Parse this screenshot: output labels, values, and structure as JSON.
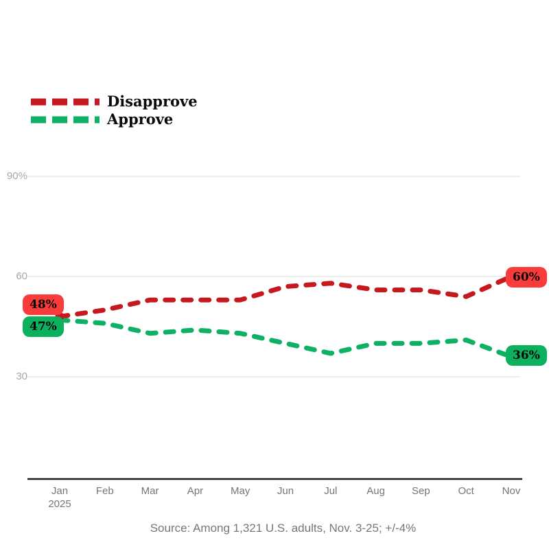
{
  "legend": {
    "items": [
      {
        "label": "Disapprove",
        "color": "#c6191f"
      },
      {
        "label": "Approve",
        "color": "#0db163"
      }
    ]
  },
  "badges": {
    "start_disapprove": {
      "text": "48%",
      "bg": "#f93b3b"
    },
    "start_approve": {
      "text": "47%",
      "bg": "#0bb15d"
    },
    "end_disapprove": {
      "text": "60%",
      "bg": "#f93b3b"
    },
    "end_approve": {
      "text": "36%",
      "bg": "#0bb15d"
    }
  },
  "source": "Source: Among 1,321 U.S. adults, Nov. 3-25; +/-4%",
  "chart_data": {
    "type": "line",
    "x": [
      "Jan",
      "Feb",
      "Mar",
      "Apr",
      "May",
      "Jun",
      "Jul",
      "Aug",
      "Sep",
      "Oct",
      "Nov"
    ],
    "x_sub_label": "2025",
    "y_ticks": [
      {
        "label": "90%",
        "value": 90
      },
      {
        "label": "60",
        "value": 60
      },
      {
        "label": "30",
        "value": 30
      }
    ],
    "ylim": [
      0,
      95
    ],
    "grid": "horizontal",
    "legend_position": "top-left",
    "line_style": "dashed",
    "grid_color": "#e9e9e9",
    "axis_color": "#1b1b1b",
    "series": [
      {
        "name": "Disapprove",
        "color": "#c6191f",
        "values": [
          48,
          50,
          53,
          53,
          53,
          57,
          58,
          56,
          56,
          54,
          60
        ]
      },
      {
        "name": "Approve",
        "color": "#0db163",
        "values": [
          47,
          46,
          43,
          44,
          43,
          40,
          37,
          40,
          40,
          41,
          36
        ]
      }
    ],
    "start_marker": {
      "series": "Disapprove",
      "x": "Jan"
    }
  }
}
